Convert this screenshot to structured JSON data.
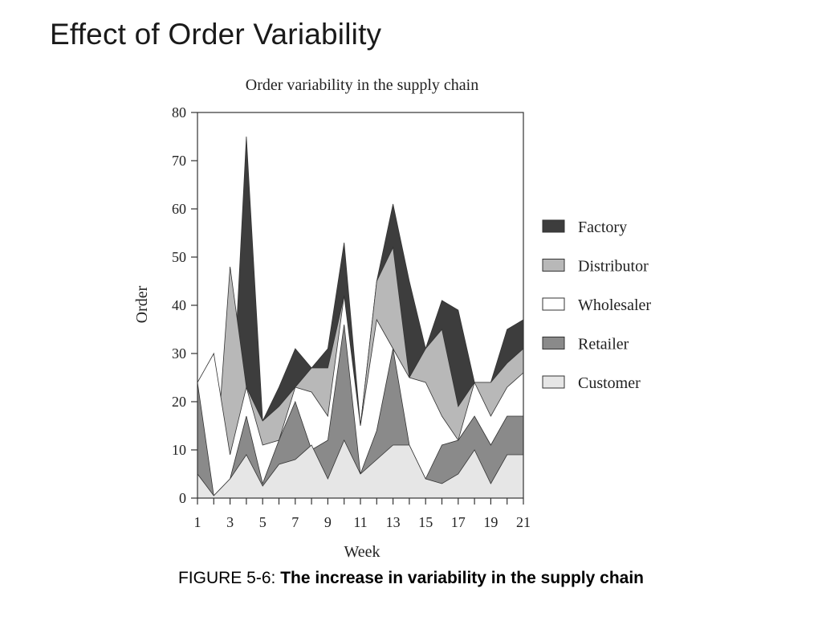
{
  "slide": {
    "title": "Effect of Order Variability"
  },
  "caption": {
    "lead": "FIGURE 5-6: ",
    "text": "The increase in variability in the supply chain"
  },
  "chart_data": {
    "type": "area",
    "title": "Order variability in the supply chain",
    "xlabel": "Week",
    "ylabel": "Order",
    "xlim": [
      1,
      21
    ],
    "ylim": [
      0,
      80
    ],
    "x_ticks": [
      1,
      3,
      5,
      7,
      9,
      11,
      13,
      15,
      17,
      19,
      21
    ],
    "y_ticks": [
      0,
      10,
      20,
      30,
      40,
      50,
      60,
      70,
      80
    ],
    "x": [
      1,
      2,
      3,
      4,
      5,
      6,
      7,
      8,
      9,
      10,
      11,
      12,
      13,
      14,
      15,
      16,
      17,
      18,
      19,
      20,
      21
    ],
    "legend_position": "right",
    "series": [
      {
        "name": "Factory",
        "color": "#3d3d3d",
        "values": [
          6,
          0.5,
          9,
          75,
          16,
          23,
          31,
          27,
          31,
          53,
          15,
          45,
          61,
          45,
          31,
          41,
          39,
          24,
          24,
          35,
          37
        ]
      },
      {
        "name": "Distributor",
        "color": "#b8b8b8",
        "values": [
          6,
          0.5,
          48,
          23,
          16,
          19,
          23,
          27,
          27,
          42,
          15,
          45,
          52,
          25,
          31,
          35,
          19,
          24,
          24,
          28,
          31
        ]
      },
      {
        "name": "Wholesaler",
        "color": "#ffffff",
        "values": [
          24,
          30,
          9,
          23,
          11,
          12,
          23,
          22,
          17,
          42,
          15,
          37,
          31,
          25,
          24,
          17,
          12,
          24,
          17,
          23,
          26
        ]
      },
      {
        "name": "Retailer",
        "color": "#8a8a8a",
        "values": [
          24,
          0.5,
          4,
          17,
          3,
          12,
          20,
          10,
          12,
          36,
          5,
          14,
          31,
          11,
          4,
          11,
          12,
          17,
          11,
          17,
          17
        ]
      },
      {
        "name": "Customer",
        "color": "#e6e6e6",
        "values": [
          5,
          0.5,
          4,
          9,
          2.5,
          7,
          8,
          11,
          4,
          12,
          5,
          8,
          11,
          11,
          4,
          3,
          5,
          10,
          3,
          9,
          9
        ]
      }
    ]
  }
}
